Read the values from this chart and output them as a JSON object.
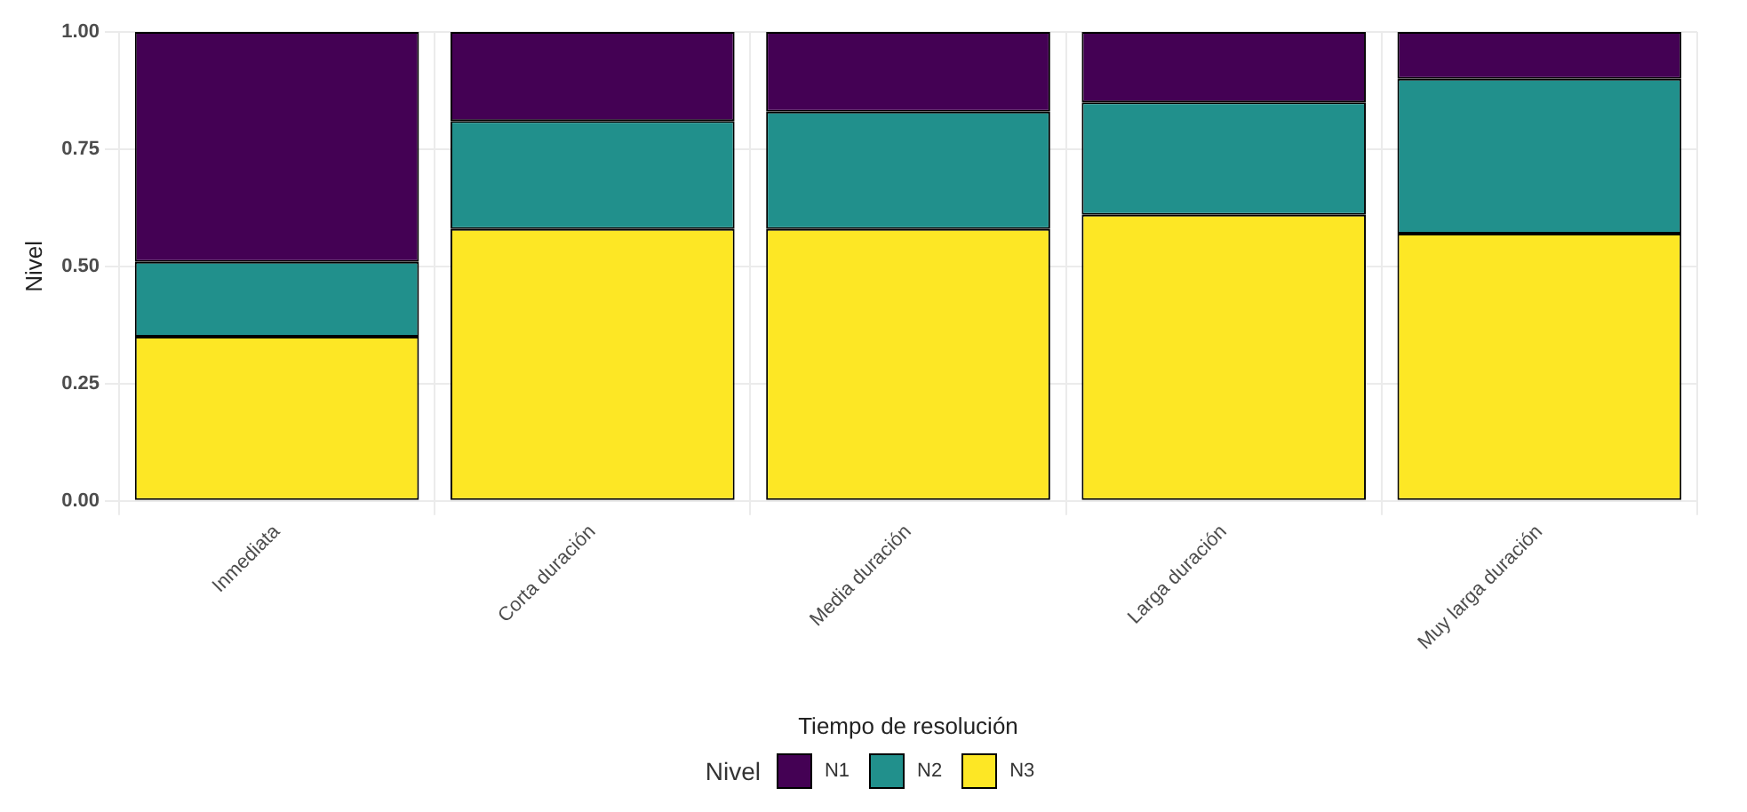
{
  "chart_data": {
    "type": "bar",
    "stacked": true,
    "xlabel": "Tiempo de resolución",
    "ylabel": "Nivel",
    "legend_title": "Nivel",
    "legend": "bottom",
    "grid": true,
    "categories": [
      "Inmediata",
      "Corta duración",
      "Media duración",
      "Larga duración",
      "Muy larga duración"
    ],
    "ylim": [
      0,
      1
    ],
    "yticks": [
      {
        "value": 0,
        "label": "0.00"
      },
      {
        "value": 0.25,
        "label": "0.25"
      },
      {
        "value": 0.5,
        "label": "0.50"
      },
      {
        "value": 0.75,
        "label": "0.75"
      },
      {
        "value": 1,
        "label": "1.00"
      }
    ],
    "series": [
      {
        "name": "N3",
        "color": "#fde725",
        "values": [
          0.35,
          0.58,
          0.58,
          0.61,
          0.57
        ]
      },
      {
        "name": "N2",
        "color": "#21908c",
        "values": [
          0.16,
          0.23,
          0.25,
          0.24,
          0.33
        ]
      },
      {
        "name": "N1",
        "color": "#440154",
        "values": [
          0.49,
          0.19,
          0.17,
          0.15,
          0.1
        ]
      }
    ]
  }
}
